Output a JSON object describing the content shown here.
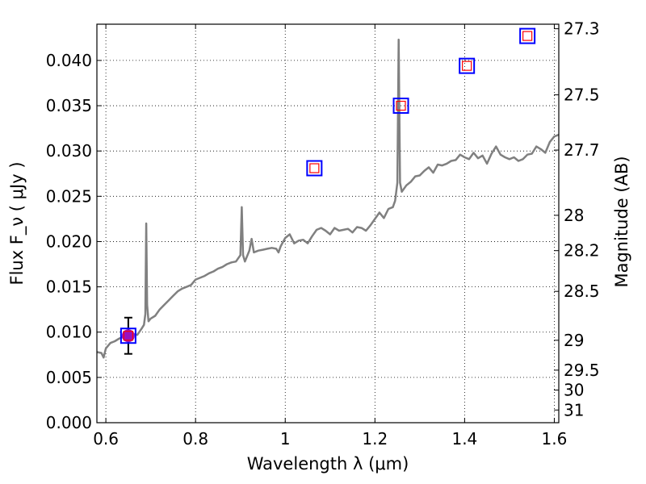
{
  "chart_data": {
    "type": "line",
    "xlabel": "Wavelength  λ (μm)",
    "ylabel": "Flux  F_ν  ( μJy )",
    "ylabel_right": "Magnitude (AB)",
    "xlim": [
      0.58,
      1.61
    ],
    "ylim": [
      0.0,
      0.044
    ],
    "grid": "dotted",
    "x_ticks": [
      0.6,
      0.8,
      1.0,
      1.2,
      1.4,
      1.6
    ],
    "x_tick_labels": [
      "0.6",
      "0.8",
      "1",
      "1.2",
      "1.4",
      "1.6"
    ],
    "y_ticks": [
      0.0,
      0.005,
      0.01,
      0.015,
      0.02,
      0.025,
      0.03,
      0.035,
      0.04
    ],
    "y_tick_labels": [
      "0.000",
      "0.005",
      "0.010",
      "0.015",
      "0.020",
      "0.025",
      "0.030",
      "0.035",
      "0.040"
    ],
    "right_ticks": [
      {
        "label": "27.3",
        "flux": 0.0435
      },
      {
        "label": "27.5",
        "flux": 0.0362
      },
      {
        "label": "27.7",
        "flux": 0.0301
      },
      {
        "label": "28",
        "flux": 0.0229
      },
      {
        "label": "28.2",
        "flux": 0.019
      },
      {
        "label": "28.5",
        "flux": 0.0145
      },
      {
        "label": "29",
        "flux": 0.0091
      },
      {
        "label": "29.5",
        "flux": 0.0058
      },
      {
        "label": "30",
        "flux": 0.0036
      },
      {
        "label": "31",
        "flux": 0.0014
      }
    ],
    "series": [
      {
        "kind": "spectrum",
        "color": "#808080",
        "x": [
          0.58,
          0.59,
          0.595,
          0.6,
          0.605,
          0.61,
          0.62,
          0.63,
          0.64,
          0.65,
          0.66,
          0.67,
          0.68,
          0.685,
          0.688,
          0.69,
          0.692,
          0.695,
          0.7,
          0.71,
          0.72,
          0.73,
          0.74,
          0.75,
          0.76,
          0.77,
          0.78,
          0.79,
          0.8,
          0.81,
          0.82,
          0.83,
          0.84,
          0.85,
          0.86,
          0.87,
          0.88,
          0.89,
          0.9,
          0.903,
          0.906,
          0.91,
          0.92,
          0.925,
          0.93,
          0.94,
          0.95,
          0.96,
          0.97,
          0.98,
          0.985,
          0.99,
          1.0,
          1.01,
          1.02,
          1.03,
          1.04,
          1.05,
          1.06,
          1.07,
          1.08,
          1.09,
          1.1,
          1.11,
          1.12,
          1.13,
          1.14,
          1.15,
          1.16,
          1.17,
          1.18,
          1.19,
          1.2,
          1.21,
          1.22,
          1.23,
          1.24,
          1.245,
          1.25,
          1.253,
          1.256,
          1.26,
          1.27,
          1.28,
          1.29,
          1.3,
          1.31,
          1.32,
          1.33,
          1.34,
          1.35,
          1.36,
          1.37,
          1.38,
          1.39,
          1.4,
          1.41,
          1.42,
          1.43,
          1.44,
          1.45,
          1.46,
          1.47,
          1.48,
          1.49,
          1.5,
          1.51,
          1.52,
          1.53,
          1.54,
          1.55,
          1.56,
          1.57,
          1.58,
          1.59,
          1.6,
          1.61
        ],
        "y": [
          0.0078,
          0.0077,
          0.0072,
          0.0082,
          0.0085,
          0.0088,
          0.009,
          0.0093,
          0.0095,
          0.0098,
          0.0098,
          0.0097,
          0.0104,
          0.0108,
          0.012,
          0.022,
          0.013,
          0.0112,
          0.0115,
          0.0118,
          0.0125,
          0.013,
          0.0135,
          0.014,
          0.0145,
          0.0148,
          0.015,
          0.0152,
          0.0158,
          0.016,
          0.0162,
          0.0165,
          0.0167,
          0.017,
          0.0172,
          0.0175,
          0.0177,
          0.0178,
          0.0185,
          0.0238,
          0.0185,
          0.0178,
          0.019,
          0.0203,
          0.0188,
          0.019,
          0.0191,
          0.0192,
          0.0193,
          0.0192,
          0.0188,
          0.0195,
          0.0204,
          0.0208,
          0.0198,
          0.0201,
          0.0202,
          0.0198,
          0.0206,
          0.0213,
          0.0215,
          0.0212,
          0.0208,
          0.0215,
          0.0212,
          0.0213,
          0.0214,
          0.021,
          0.0216,
          0.0215,
          0.0212,
          0.0218,
          0.0225,
          0.0232,
          0.0226,
          0.0236,
          0.0238,
          0.0245,
          0.0265,
          0.0423,
          0.0265,
          0.0255,
          0.0262,
          0.0266,
          0.0272,
          0.0273,
          0.0278,
          0.0282,
          0.0276,
          0.0285,
          0.0284,
          0.0286,
          0.0289,
          0.029,
          0.0296,
          0.0293,
          0.0291,
          0.0298,
          0.0292,
          0.0295,
          0.0286,
          0.0297,
          0.0305,
          0.0296,
          0.0293,
          0.0291,
          0.0293,
          0.0289,
          0.0291,
          0.0296,
          0.0297,
          0.0305,
          0.0302,
          0.0298,
          0.031,
          0.0316,
          0.0318
        ]
      }
    ],
    "photometry": [
      {
        "x": 0.65,
        "y": 0.0096,
        "yerr": 0.002,
        "model_y": 0.0096,
        "measured": true
      },
      {
        "x": 1.065,
        "y": 0.0281,
        "model_y": 0.0281
      },
      {
        "x": 1.258,
        "y": 0.035,
        "model_y": 0.035
      },
      {
        "x": 1.405,
        "y": 0.0394,
        "model_y": 0.0394
      },
      {
        "x": 1.54,
        "y": 0.0427,
        "model_y": 0.0427
      }
    ],
    "colors": {
      "spectrum": "#808080",
      "box_outer": "#0000ff",
      "box_inner": "#ff0000",
      "measured_fill": "#9b0fbf",
      "errorbar": "#000000"
    }
  }
}
